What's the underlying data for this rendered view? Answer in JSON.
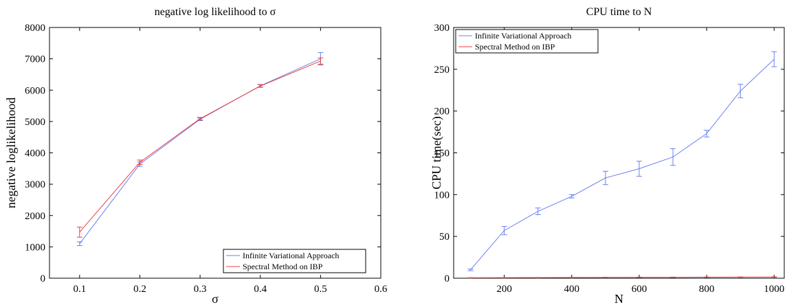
{
  "chart_data": [
    {
      "type": "line",
      "title": "negative log likelihood to σ",
      "xlabel": "σ",
      "ylabel": "negative loglikelihood",
      "xlim": [
        0.05,
        0.6
      ],
      "ylim": [
        0,
        8000
      ],
      "xticks": [
        "0.1",
        "0.2",
        "0.3",
        "0.4",
        "0.5",
        "0.6"
      ],
      "yticks": [
        "0",
        "1000",
        "2000",
        "3000",
        "4000",
        "5000",
        "6000",
        "7000",
        "8000"
      ],
      "legend_position": "bottom-right",
      "grid": false,
      "x": [
        0.1,
        0.2,
        0.3,
        0.4,
        0.5
      ],
      "series": [
        {
          "name": "Infinite Variational Approach",
          "color": "#6a7ff0",
          "values": [
            1100,
            3640,
            5070,
            6140,
            7000
          ],
          "errors": [
            60,
            70,
            40,
            40,
            200
          ]
        },
        {
          "name": "Spectral Method on IBP",
          "color": "#ee3c3c",
          "values": [
            1470,
            3700,
            5090,
            6130,
            6930
          ],
          "errors": [
            160,
            70,
            40,
            40,
            100
          ]
        }
      ]
    },
    {
      "type": "line",
      "title": "CPU time to N",
      "xlabel": "N",
      "ylabel": "CPU time(sec)",
      "xlim": [
        50,
        1030
      ],
      "ylim": [
        0,
        300
      ],
      "xticks": [
        "200",
        "400",
        "600",
        "800",
        "1000"
      ],
      "yticks": [
        "0",
        "50",
        "100",
        "150",
        "200",
        "250",
        "300"
      ],
      "legend_position": "top-left",
      "grid": false,
      "x": [
        100,
        200,
        300,
        400,
        500,
        600,
        700,
        800,
        900,
        1000
      ],
      "series": [
        {
          "name": "Infinite Variational Approach",
          "color": "#6a7ff0",
          "values": [
            10,
            57,
            80,
            98,
            120,
            131,
            145,
            173,
            224,
            262
          ],
          "errors": [
            1,
            5,
            4,
            2,
            8,
            9,
            10,
            4,
            8,
            9
          ]
        },
        {
          "name": "Spectral Method on IBP",
          "color": "#ee3c3c",
          "values": [
            0.5,
            0.6,
            0.7,
            0.8,
            0.9,
            1.0,
            1.1,
            1.2,
            1.3,
            1.4
          ],
          "errors": [
            0.2,
            0.2,
            0.2,
            0.2,
            0.2,
            0.2,
            0.2,
            0.2,
            0.2,
            0.2
          ]
        }
      ]
    }
  ]
}
